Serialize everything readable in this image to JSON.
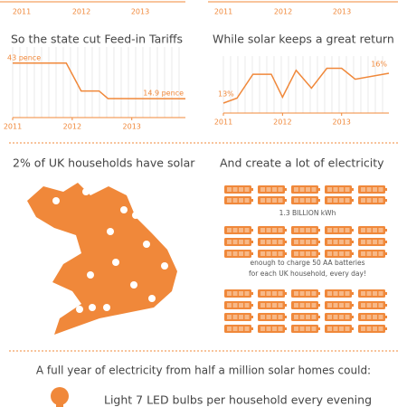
{
  "top_axes": {
    "left": [
      "2011",
      "2012",
      "2013"
    ],
    "right": [
      "2011",
      "2012",
      "2013"
    ]
  },
  "chart_data": [
    {
      "type": "line",
      "title": "So the state cut Feed-in Tariffs",
      "x": [
        2011,
        2011.9,
        2012.15,
        2012.45,
        2012.6,
        2013.9
      ],
      "values": [
        43,
        43,
        21,
        21,
        15,
        14.9
      ],
      "value_labels": [
        "43 pence",
        null,
        null,
        null,
        null,
        "14.9 pence"
      ],
      "color": "#f0883a",
      "xlim": [
        2011,
        2013.9
      ],
      "xticks": [
        2011,
        2012,
        2013
      ],
      "ylim": [
        0,
        50
      ]
    },
    {
      "type": "line",
      "title": "While solar keeps a great return",
      "x": [
        2011,
        2011.23,
        2011.5,
        2011.81,
        2012,
        2012.23,
        2012.49,
        2012.75,
        2013,
        2013.23,
        2013.8
      ],
      "values": [
        13,
        13.5,
        15.9,
        15.9,
        13.6,
        16.3,
        14.5,
        16.5,
        16.5,
        15.4,
        16
      ],
      "value_labels": [
        "13%",
        null,
        null,
        null,
        null,
        null,
        null,
        null,
        null,
        null,
        "16%"
      ],
      "color": "#f0883a",
      "xlim": [
        2011,
        2013.8
      ],
      "xticks": [
        2011,
        2012,
        2013
      ],
      "ylim": [
        12,
        17
      ]
    }
  ],
  "map": {
    "title": "2% of UK households have solar"
  },
  "electricity": {
    "title": "And create a lot of electricity",
    "total": "1.3 BILLION kWh",
    "note": [
      "enough to charge 50 AA batteries",
      "for each UK household, every day!"
    ]
  },
  "footer": {
    "title": "A full year of electricity from half a million solar homes could:",
    "item": "Light 7 LED bulbs per household every evening"
  }
}
